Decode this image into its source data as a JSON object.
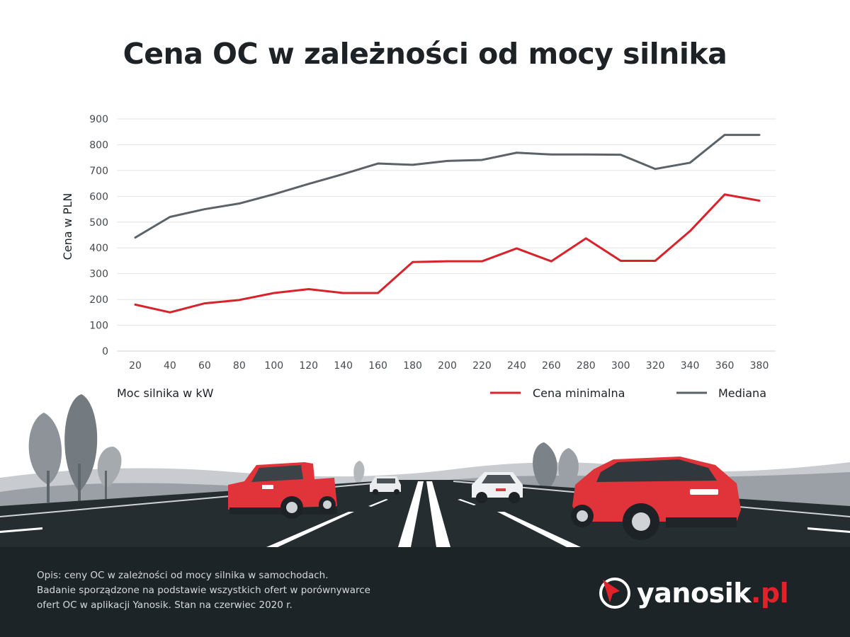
{
  "title": "Cena OC w zależności od mocy silnika",
  "colors": {
    "min": "#d9232b",
    "median": "#5b6369",
    "grid": "#e2e4e6",
    "road": "#262d31",
    "footer": "#1d2428",
    "brand": "#e2222b"
  },
  "chart_data": {
    "type": "line",
    "x": [
      20,
      40,
      60,
      80,
      100,
      120,
      140,
      160,
      180,
      200,
      220,
      240,
      260,
      280,
      300,
      320,
      340,
      360,
      380
    ],
    "series": [
      {
        "name": "Cena minimalna",
        "color": "#d9232b",
        "values": [
          180,
          150,
          185,
          198,
          225,
          240,
          225,
          225,
          345,
          348,
          348,
          398,
          348,
          437,
          350,
          350,
          465,
          607,
          583
        ]
      },
      {
        "name": "Mediana",
        "color": "#5b6369",
        "values": [
          440,
          520,
          550,
          572,
          608,
          648,
          686,
          727,
          722,
          737,
          741,
          769,
          762,
          762,
          761,
          706,
          730,
          838,
          838
        ]
      }
    ],
    "xlabel": "Moc silnika w kW",
    "ylabel": "Cena w PLN",
    "ylim": [
      0,
      900
    ],
    "yticks": [
      0,
      100,
      200,
      300,
      400,
      500,
      600,
      700,
      800,
      900
    ],
    "grid": true,
    "legend": "bottom-right"
  },
  "footer": {
    "lines": [
      "Opis: ceny OC w zależności od mocy silnika w samochodach.",
      "Badanie sporządzone na podstawie wszystkich ofert w porównywarce",
      "ofert OC w aplikacji Yanosik. Stan na czerwiec 2020 r."
    ],
    "logo_name": "yanosik",
    "logo_ext": ".pl",
    "logo_icon": "yanosik-logo-icon"
  }
}
